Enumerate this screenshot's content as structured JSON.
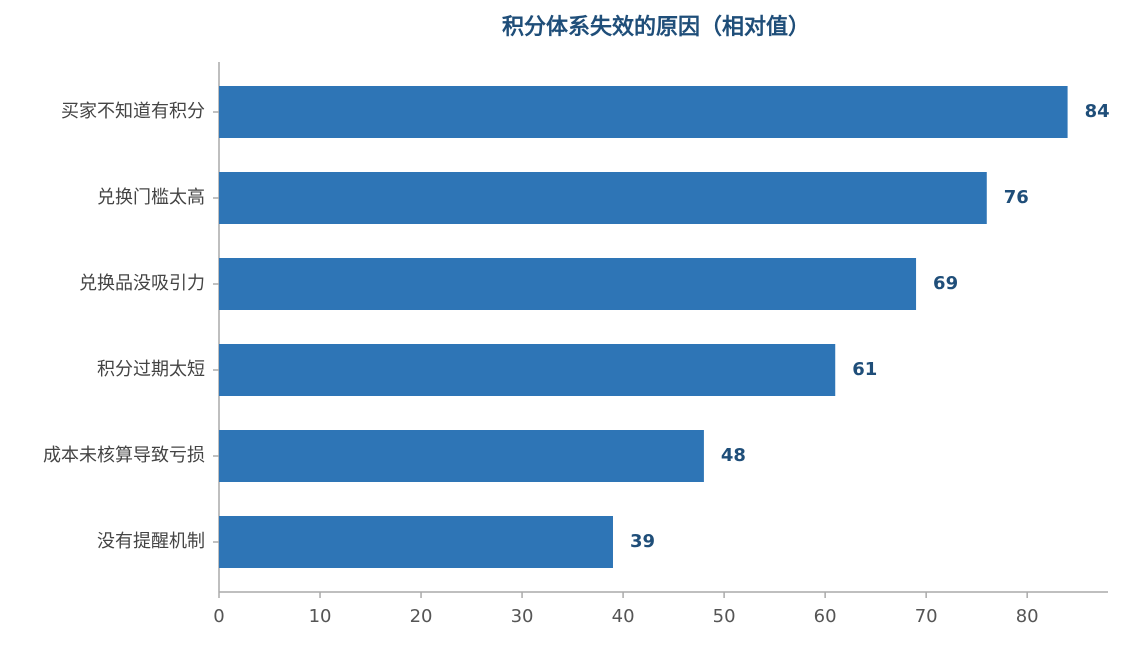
{
  "chart_data": {
    "type": "bar",
    "orientation": "horizontal",
    "title": "积分体系失效的原因（相对值）",
    "categories": [
      "买家不知道有积分",
      "兑换门槛太高",
      "兑换品没吸引力",
      "积分过期太短",
      "成本未核算导致亏损",
      "没有提醒机制"
    ],
    "values": [
      84,
      76,
      69,
      61,
      48,
      39
    ],
    "color": "#2e75b6",
    "xlim": [
      0,
      88
    ],
    "xticks": [
      0,
      10,
      20,
      30,
      40,
      50,
      60,
      70,
      80
    ],
    "grid": false
  }
}
